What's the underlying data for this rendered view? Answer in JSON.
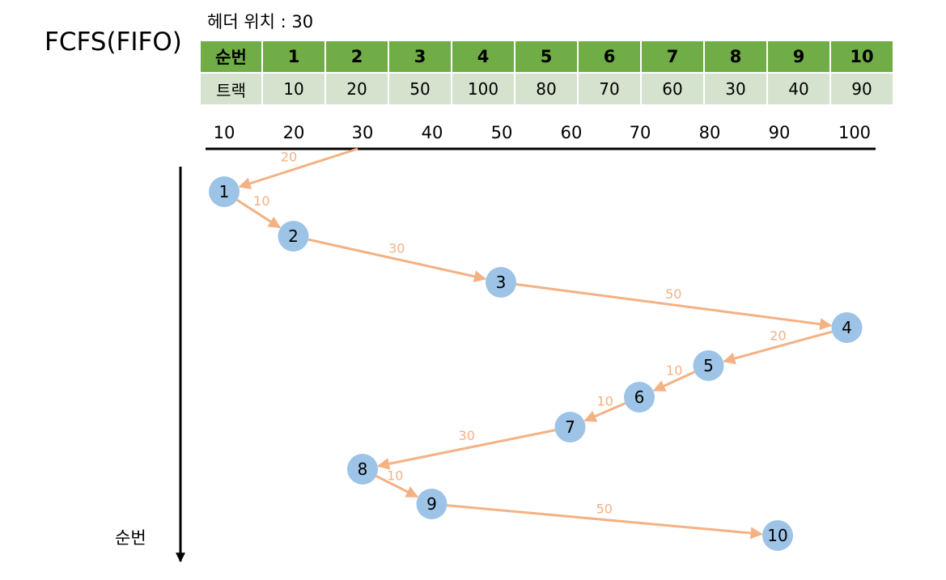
{
  "title": "FCFS(FIFO)",
  "head_position_label": "헤더 위치 : 30",
  "head_start_track": 30,
  "table": {
    "order_header": "순번",
    "track_header": "트랙",
    "orders": [
      "1",
      "2",
      "3",
      "4",
      "5",
      "6",
      "7",
      "8",
      "9",
      "10"
    ],
    "tracks": [
      "10",
      "20",
      "50",
      "100",
      "80",
      "70",
      "60",
      "30",
      "40",
      "90"
    ]
  },
  "axis_ticks": [
    "10",
    "20",
    "30",
    "40",
    "50",
    "60",
    "70",
    "80",
    "90",
    "100"
  ],
  "y_axis_label": "순번",
  "colors": {
    "header_green": "#70ad47",
    "track_row": "#d5e3ce",
    "node": "#9dc3e6",
    "arrow": "#f4b183",
    "distance_text": "#f4b183"
  },
  "moves": [
    {
      "to": "1",
      "distance": "20"
    },
    {
      "to": "2",
      "distance": "10"
    },
    {
      "to": "3",
      "distance": "30"
    },
    {
      "to": "4",
      "distance": "50"
    },
    {
      "to": "5",
      "distance": "20"
    },
    {
      "to": "6",
      "distance": "10"
    },
    {
      "to": "7",
      "distance": "10"
    },
    {
      "to": "8",
      "distance": "30"
    },
    {
      "to": "9",
      "distance": "10"
    },
    {
      "to": "10",
      "distance": "50"
    }
  ]
}
